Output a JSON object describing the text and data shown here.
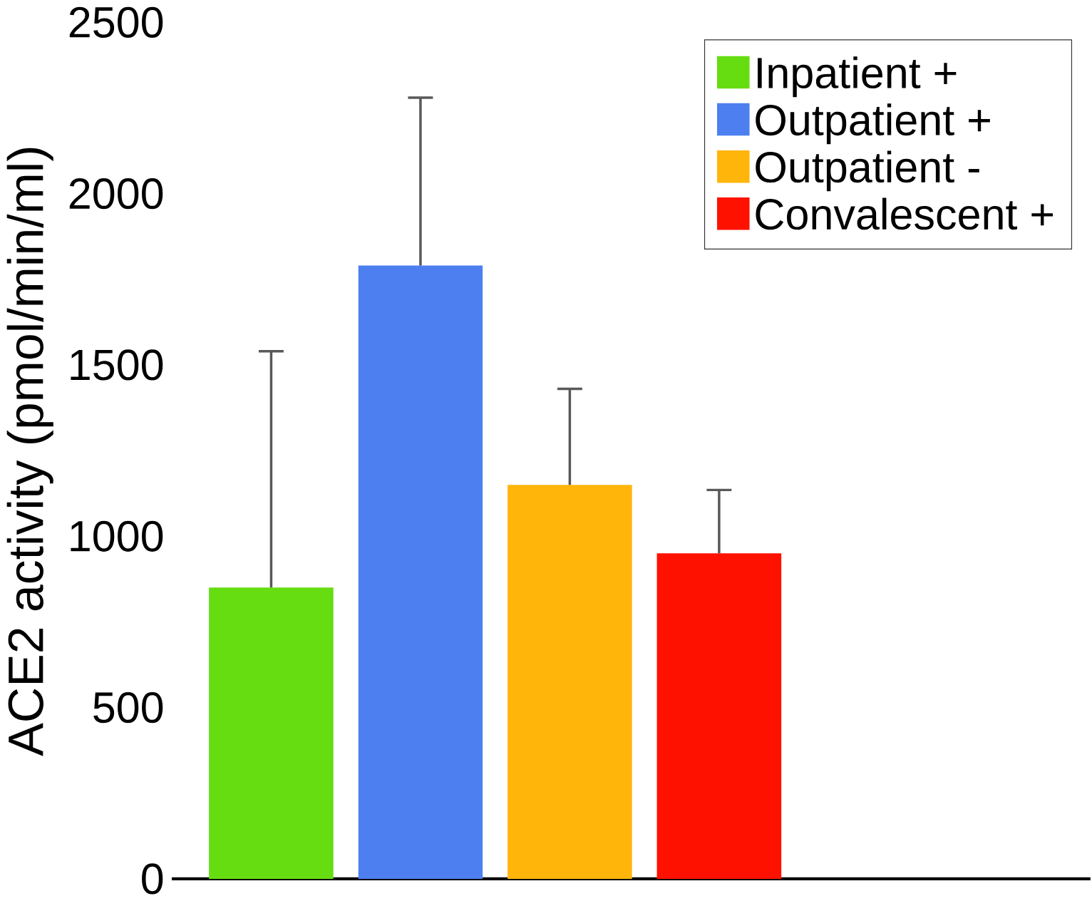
{
  "chart_data": {
    "type": "bar",
    "ylabel": "ACE2 activity (pmol/min/ml)",
    "categories": [
      null
    ],
    "series": [
      {
        "name": "Inpatient +",
        "color": "#66dd11",
        "values": [
          850
        ],
        "errors": [
          [
            850,
            1540
          ]
        ]
      },
      {
        "name": "Outpatient +",
        "color": "#4d7ff0",
        "values": [
          1790
        ],
        "errors": [
          [
            1790,
            2280
          ]
        ]
      },
      {
        "name": "Outpatient -",
        "color": "#ffb50a",
        "values": [
          1150
        ],
        "errors": [
          [
            1150,
            1430
          ]
        ]
      },
      {
        "name": "Convalescent +",
        "color": "#ff1100",
        "values": [
          950
        ],
        "errors": [
          [
            950,
            1135
          ]
        ]
      }
    ],
    "ylim": [
      0,
      2500
    ],
    "yticks": [
      0,
      500,
      1000,
      1500,
      2000,
      2500
    ],
    "grid": false,
    "legend": "top right",
    "tick_labels": "y"
  }
}
